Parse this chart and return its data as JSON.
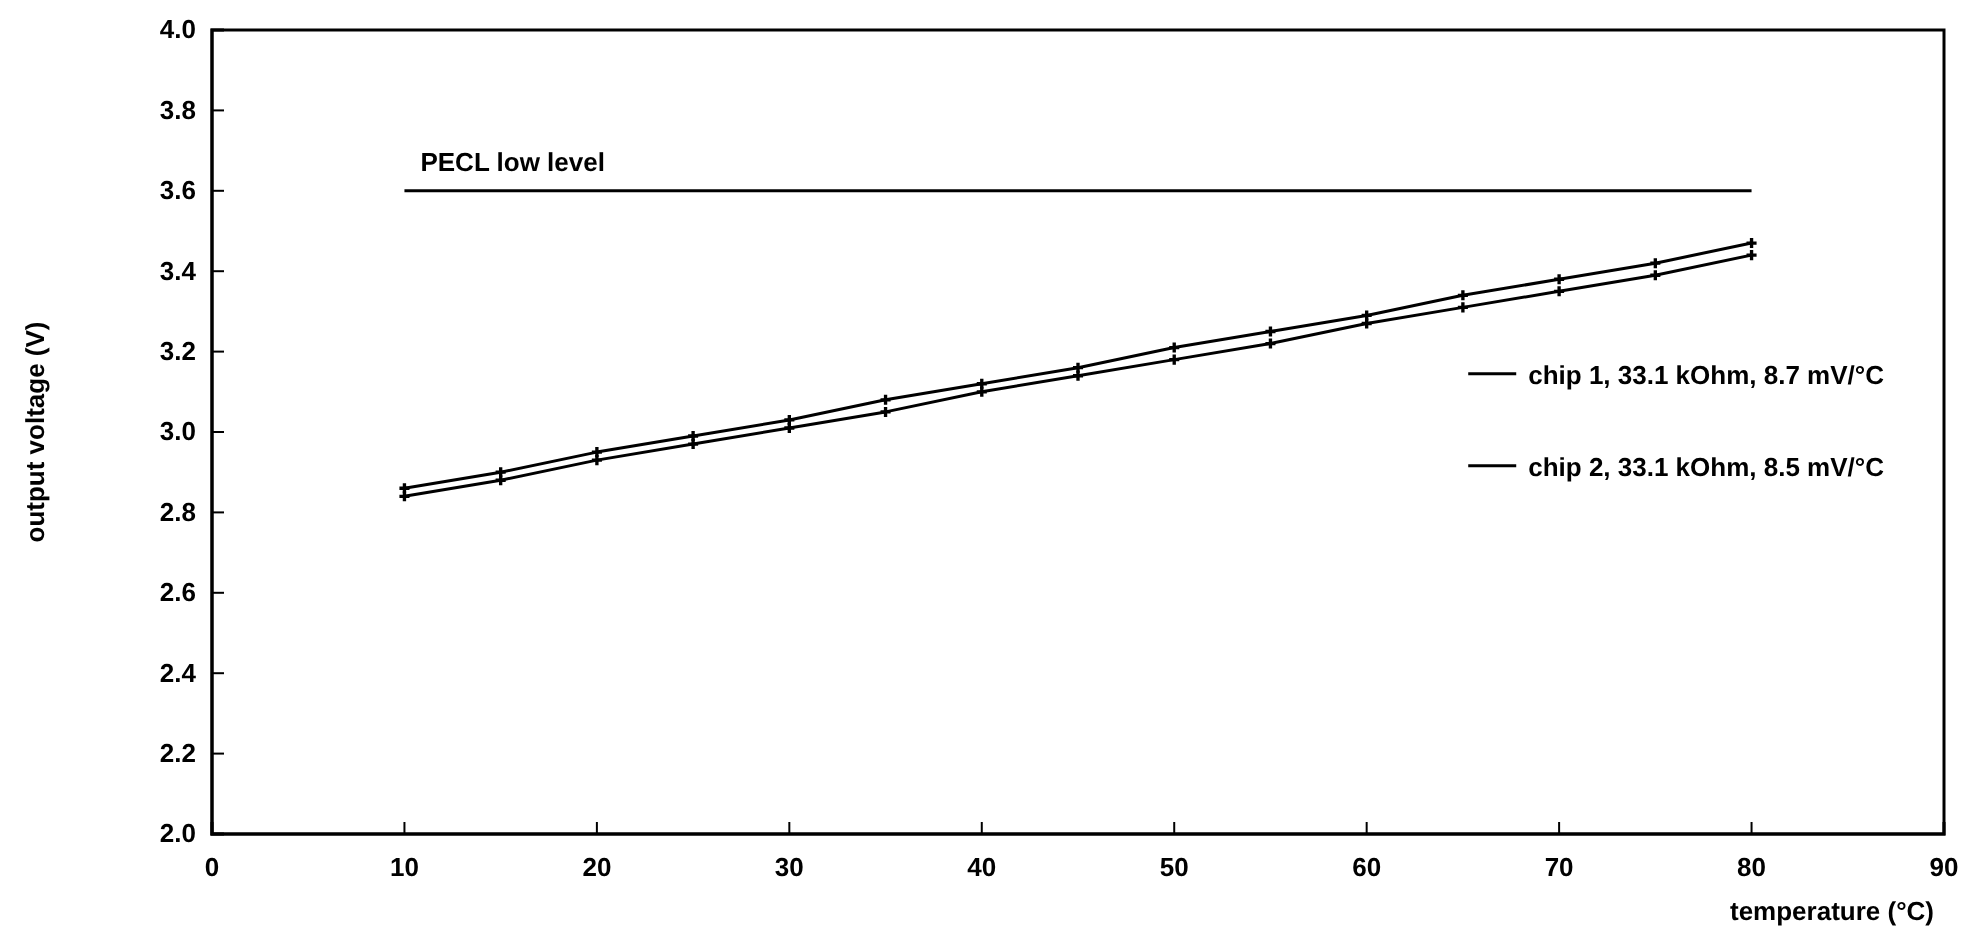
{
  "chart_data": {
    "type": "line",
    "xlabel": "temperature (°C)",
    "ylabel": "output voltage (V)",
    "xlim": [
      0,
      90
    ],
    "xticks": [
      0,
      10,
      20,
      30,
      40,
      50,
      60,
      70,
      80,
      90
    ],
    "ylim": [
      2,
      4
    ],
    "yticks": [
      {
        "value": 2,
        "label": "2.0"
      },
      {
        "value": 2.2,
        "label": "2.2"
      },
      {
        "value": 2.4,
        "label": "2.4"
      },
      {
        "value": 2.6,
        "label": "2.6"
      },
      {
        "value": 2.8,
        "label": "2.8"
      },
      {
        "value": 3,
        "label": "3.0"
      },
      {
        "value": 3.2,
        "label": "3.2"
      },
      {
        "value": 3.4,
        "label": "3.4"
      },
      {
        "value": 3.6,
        "label": "3.6"
      },
      {
        "value": 3.8,
        "label": "3.8"
      },
      {
        "value": 4,
        "label": "4.0"
      }
    ],
    "grid": false,
    "legend": "right",
    "marker": "cross",
    "line_style": "solid",
    "series": [
      {
        "name": "PECL low level",
        "color": "#000000",
        "marker": "none",
        "x": [
          10,
          80
        ],
        "values": [
          3.6,
          3.6
        ]
      },
      {
        "name": "chip 1, 33.1 kOhm, 8.7 mV/°C",
        "color": "#000000",
        "x": [
          10,
          15,
          20,
          25,
          30,
          35,
          40,
          45,
          50,
          55,
          60,
          65,
          70,
          75,
          80
        ],
        "values": [
          2.86,
          2.9,
          2.95,
          2.99,
          3.03,
          3.08,
          3.12,
          3.16,
          3.21,
          3.25,
          3.29,
          3.34,
          3.38,
          3.42,
          3.47
        ]
      },
      {
        "name": "chip 2, 33.1 kOhm, 8.5 mV/°C",
        "color": "#000000",
        "x": [
          10,
          15,
          20,
          25,
          30,
          35,
          40,
          45,
          50,
          55,
          60,
          65,
          70,
          75,
          80
        ],
        "values": [
          2.84,
          2.88,
          2.93,
          2.97,
          3.01,
          3.05,
          3.1,
          3.14,
          3.18,
          3.22,
          3.27,
          3.31,
          3.35,
          3.39,
          3.44
        ]
      }
    ]
  }
}
